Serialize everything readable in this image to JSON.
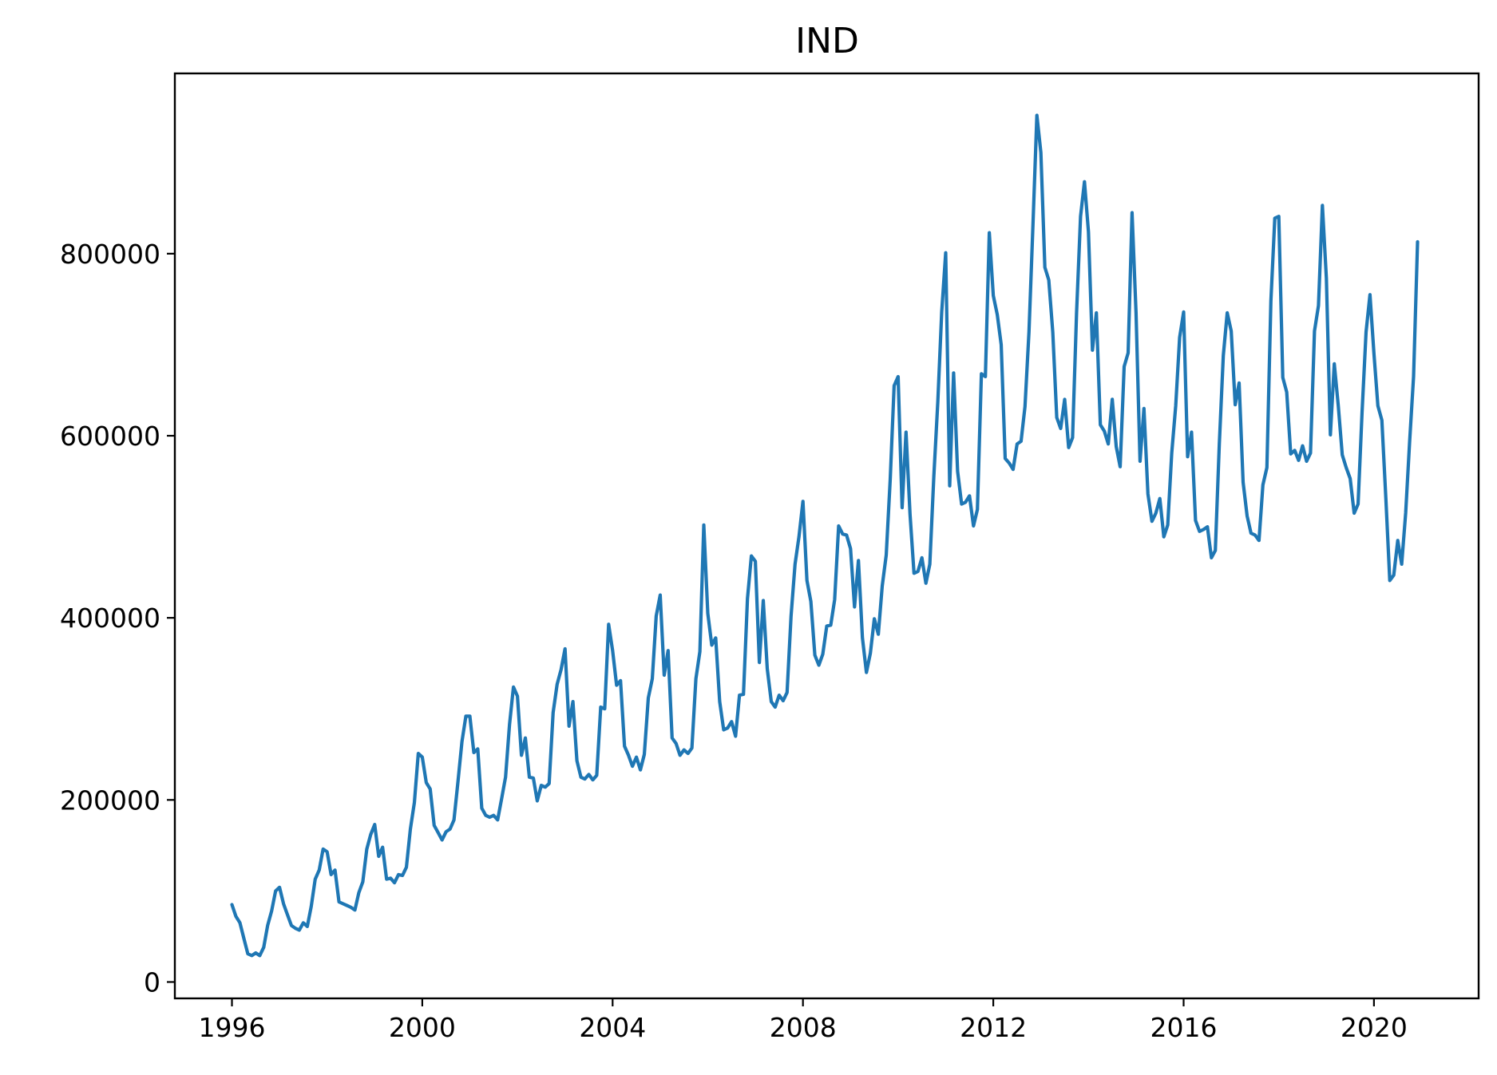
{
  "chart_data": {
    "type": "line",
    "title": "IND",
    "xlabel": "",
    "ylabel": "",
    "xlim": [
      1994.8,
      2022.2
    ],
    "ylim": [
      -18000,
      998000
    ],
    "x_ticks": [
      1996,
      2000,
      2004,
      2008,
      2012,
      2016,
      2020
    ],
    "x_tick_labels": [
      "1996",
      "2000",
      "2004",
      "2008",
      "2012",
      "2016",
      "2020"
    ],
    "y_ticks": [
      0,
      200000,
      400000,
      600000,
      800000
    ],
    "y_tick_labels": [
      "0",
      "200000",
      "400000",
      "600000",
      "800000"
    ],
    "grid": false,
    "legend": "none",
    "colors": {
      "series": "#1f77b4",
      "axes": "#000000",
      "background": "#ffffff"
    },
    "series": [
      {
        "x_start": "1996-01",
        "frequency": "monthly",
        "values": [
          85000,
          72000,
          65000,
          48000,
          31000,
          29000,
          32000,
          29000,
          38000,
          62000,
          78000,
          100000,
          104000,
          86000,
          74000,
          62000,
          59000,
          57000,
          65000,
          61000,
          83000,
          113000,
          123000,
          146000,
          143000,
          118000,
          123000,
          88000,
          86000,
          84000,
          82000,
          79000,
          98000,
          110000,
          146000,
          162000,
          173000,
          138000,
          148000,
          113000,
          114000,
          109000,
          118000,
          117000,
          126000,
          168000,
          197000,
          251000,
          247000,
          219000,
          212000,
          172000,
          164000,
          156000,
          165000,
          168000,
          178000,
          220000,
          264000,
          292000,
          292000,
          252000,
          256000,
          191000,
          183000,
          181000,
          183000,
          178000,
          201000,
          225000,
          283000,
          324000,
          314000,
          249000,
          268000,
          225000,
          224000,
          199000,
          216000,
          214000,
          218000,
          296000,
          327000,
          343000,
          366000,
          281000,
          308000,
          243000,
          225000,
          223000,
          228000,
          222000,
          227000,
          302000,
          300000,
          393000,
          364000,
          326000,
          331000,
          259000,
          249000,
          237000,
          247000,
          233000,
          250000,
          312000,
          333000,
          402000,
          425000,
          337000,
          364000,
          268000,
          262000,
          249000,
          255000,
          251000,
          257000,
          333000,
          363000,
          502000,
          405000,
          370000,
          378000,
          308000,
          277000,
          279000,
          286000,
          270000,
          315000,
          316000,
          421000,
          468000,
          462000,
          351000,
          419000,
          344000,
          308000,
          302000,
          315000,
          309000,
          318000,
          402000,
          459000,
          489000,
          528000,
          441000,
          418000,
          359000,
          348000,
          360000,
          391000,
          392000,
          420000,
          501000,
          492000,
          491000,
          476000,
          412000,
          463000,
          378000,
          340000,
          361000,
          399000,
          382000,
          435000,
          469000,
          552000,
          655000,
          665000,
          521000,
          604000,
          514000,
          449000,
          451000,
          466000,
          438000,
          459000,
          555000,
          637000,
          736000,
          801000,
          545000,
          669000,
          561000,
          525000,
          527000,
          534000,
          501000,
          519000,
          668000,
          665000,
          823000,
          754000,
          733000,
          700000,
          575000,
          570000,
          563000,
          591000,
          594000,
          632000,
          714000,
          832000,
          952000,
          911000,
          785000,
          771000,
          714000,
          620000,
          608000,
          640000,
          587000,
          598000,
          735000,
          841000,
          879000,
          824000,
          694000,
          735000,
          612000,
          605000,
          591000,
          640000,
          588000,
          566000,
          676000,
          691000,
          845000,
          735000,
          572000,
          630000,
          536000,
          506000,
          515000,
          531000,
          489000,
          502000,
          581000,
          633000,
          708000,
          736000,
          577000,
          604000,
          507000,
          495000,
          497000,
          500000,
          466000,
          474000,
          591000,
          688000,
          735000,
          715000,
          634000,
          658000,
          549000,
          512000,
          493000,
          491000,
          485000,
          546000,
          565000,
          748000,
          839000,
          841000,
          664000,
          648000,
          580000,
          584000,
          573000,
          589000,
          572000,
          581000,
          715000,
          743000,
          853000,
          773000,
          601000,
          679000,
          633000,
          579000,
          565000,
          553000,
          515000,
          525000,
          626000,
          714000,
          755000,
          690000,
          633000,
          617000,
          531000,
          441000,
          447000,
          485000,
          459000,
          515000,
          594000,
          665000,
          813000
        ]
      }
    ]
  }
}
